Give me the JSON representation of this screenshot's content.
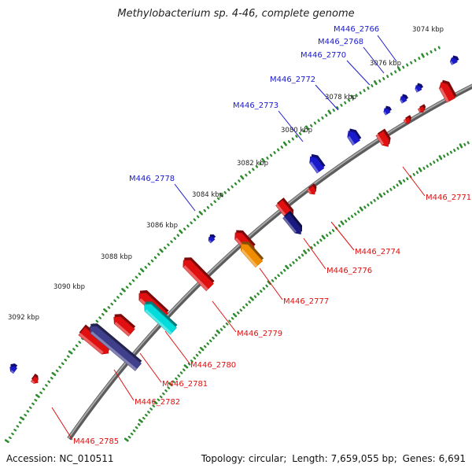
{
  "title": "Methylobacterium sp. 4-46, complete genome",
  "footer": {
    "accession_label": "Accession:",
    "accession": "NC_010511",
    "topology_label": "Topology:",
    "topology": "circular",
    "length_label": "Length:",
    "length": "7,659,055 bp",
    "genes_label": "Genes:",
    "genes": "6,691"
  },
  "colors": {
    "backbone": "#808080",
    "tick_dots": "#2e8b2e",
    "forward_label": "#1a1acc",
    "reverse_label": "#e01010",
    "gene_red": "#e01010",
    "gene_blue": "#1a1acc",
    "gene_orange": "#f08c00",
    "gene_cyan": "#00dcdc",
    "gene_slate": "#3f3f8c",
    "gene_navy": "#1a1a80"
  },
  "scale": {
    "unit": "kbp",
    "ticks": [
      "3074 kbp",
      "3076 kbp",
      "3078 kbp",
      "3080 kbp",
      "3082 kbp",
      "3084 kbp",
      "3086 kbp",
      "3088 kbp",
      "3090 kbp",
      "3092 kbp"
    ]
  },
  "genes": [
    {
      "id": "M446_2766",
      "strand": "forward"
    },
    {
      "id": "M446_2768",
      "strand": "forward"
    },
    {
      "id": "M446_2770",
      "strand": "forward"
    },
    {
      "id": "M446_2772",
      "strand": "forward"
    },
    {
      "id": "M446_2773",
      "strand": "forward"
    },
    {
      "id": "M446_2778",
      "strand": "forward"
    },
    {
      "id": "M446_2771",
      "strand": "reverse"
    },
    {
      "id": "M446_2774",
      "strand": "reverse"
    },
    {
      "id": "M446_2776",
      "strand": "reverse"
    },
    {
      "id": "M446_2777",
      "strand": "reverse"
    },
    {
      "id": "M446_2779",
      "strand": "reverse"
    },
    {
      "id": "M446_2780",
      "strand": "reverse"
    },
    {
      "id": "M446_2781",
      "strand": "reverse"
    },
    {
      "id": "M446_2782",
      "strand": "reverse"
    },
    {
      "id": "M446_2785",
      "strand": "reverse"
    }
  ]
}
